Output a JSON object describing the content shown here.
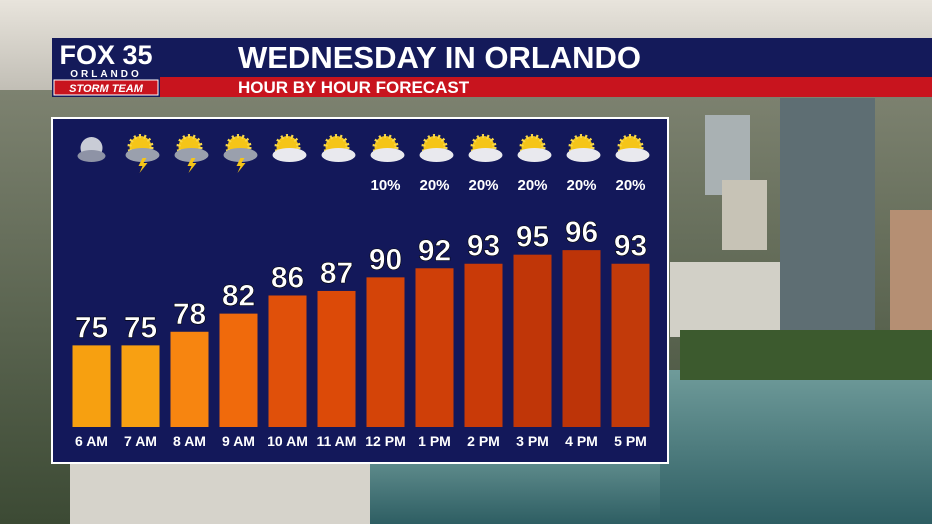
{
  "brand": {
    "name": "FOX 35",
    "city": "ORLANDO",
    "team": "STORM TEAM"
  },
  "chart_data": {
    "type": "bar",
    "title": "WEDNESDAY IN ORLANDO",
    "subtitle": "HOUR BY HOUR FORECAST",
    "categories": [
      "6 AM",
      "7 AM",
      "8 AM",
      "9 AM",
      "10 AM",
      "11 AM",
      "12 PM",
      "1 PM",
      "2 PM",
      "3 PM",
      "4 PM",
      "5 PM"
    ],
    "values": [
      75,
      75,
      78,
      82,
      86,
      87,
      90,
      92,
      93,
      95,
      96,
      93
    ],
    "colors": [
      "#f7a010",
      "#f8a012",
      "#f78510",
      "#f06a0c",
      "#e0500a",
      "#dc4a08",
      "#d44408",
      "#cf3f08",
      "#c93a08",
      "#c03608",
      "#bd3408",
      "#c23a0a"
    ],
    "ylim": [
      57,
      100
    ],
    "precip_chance": {
      "values": [
        null,
        null,
        null,
        null,
        null,
        null,
        10,
        20,
        20,
        20,
        20,
        20
      ],
      "value_labels": [
        null,
        null,
        null,
        null,
        null,
        null,
        "10%",
        "20%",
        "20%",
        "20%",
        "20%",
        "20%"
      ]
    }
  }
}
